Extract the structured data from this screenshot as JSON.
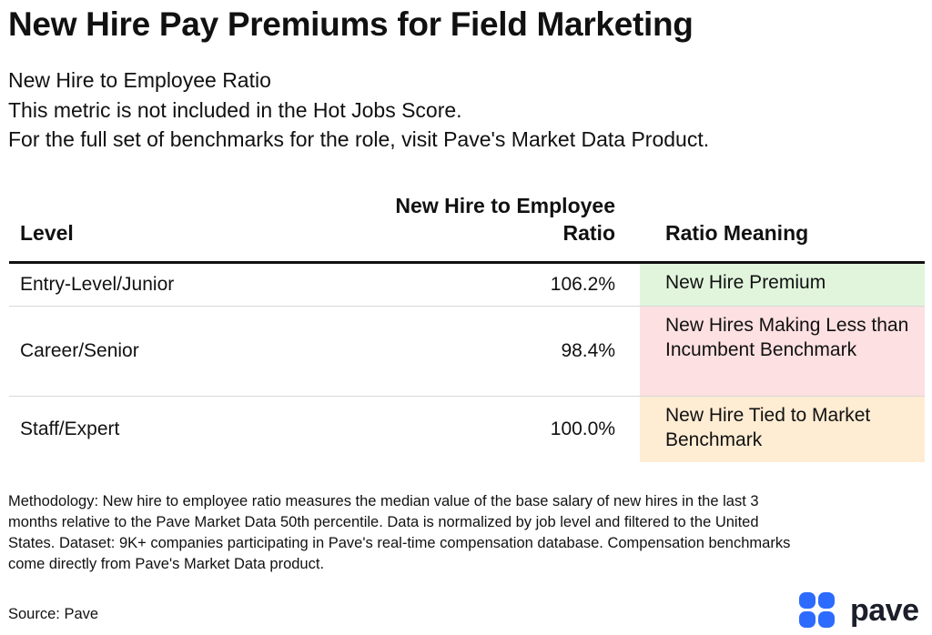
{
  "title": "New Hire Pay Premiums for Field Marketing",
  "subtitle": [
    "New Hire to Employee Ratio",
    "This metric is not included in the Hot Jobs Score.",
    "For the full set of benchmarks for the role, visit Pave's Market Data Product."
  ],
  "chart_data": {
    "type": "table",
    "columns": [
      "Level",
      "New Hire to Employee Ratio",
      "Ratio Meaning"
    ],
    "rows": [
      {
        "level": "Entry-Level/Junior",
        "ratio": "106.2%",
        "ratio_value": 106.2,
        "meaning": "New Hire Premium",
        "meaning_color": "#e1f5dd"
      },
      {
        "level": "Career/Senior",
        "ratio": "98.4%",
        "ratio_value": 98.4,
        "meaning": "New Hires Making Less than Incumbent Benchmark",
        "meaning_color": "#fde0e1"
      },
      {
        "level": "Staff/Expert",
        "ratio": "100.0%",
        "ratio_value": 100.0,
        "meaning": "New Hire Tied to Market Benchmark",
        "meaning_color": "#feecd3"
      }
    ]
  },
  "methodology": "Methodology: New hire to employee ratio measures the median value of the base salary of new hires in the last 3 months relative to the Pave Market Data 50th percentile. Data is normalized by job level and filtered to the United States. Dataset: 9K+ companies participating in Pave's real-time compensation database. Compensation benchmarks come directly from Pave's Market Data product.",
  "source": "Source: Pave",
  "logo": {
    "text": "pave",
    "color": "#2d6bff"
  }
}
